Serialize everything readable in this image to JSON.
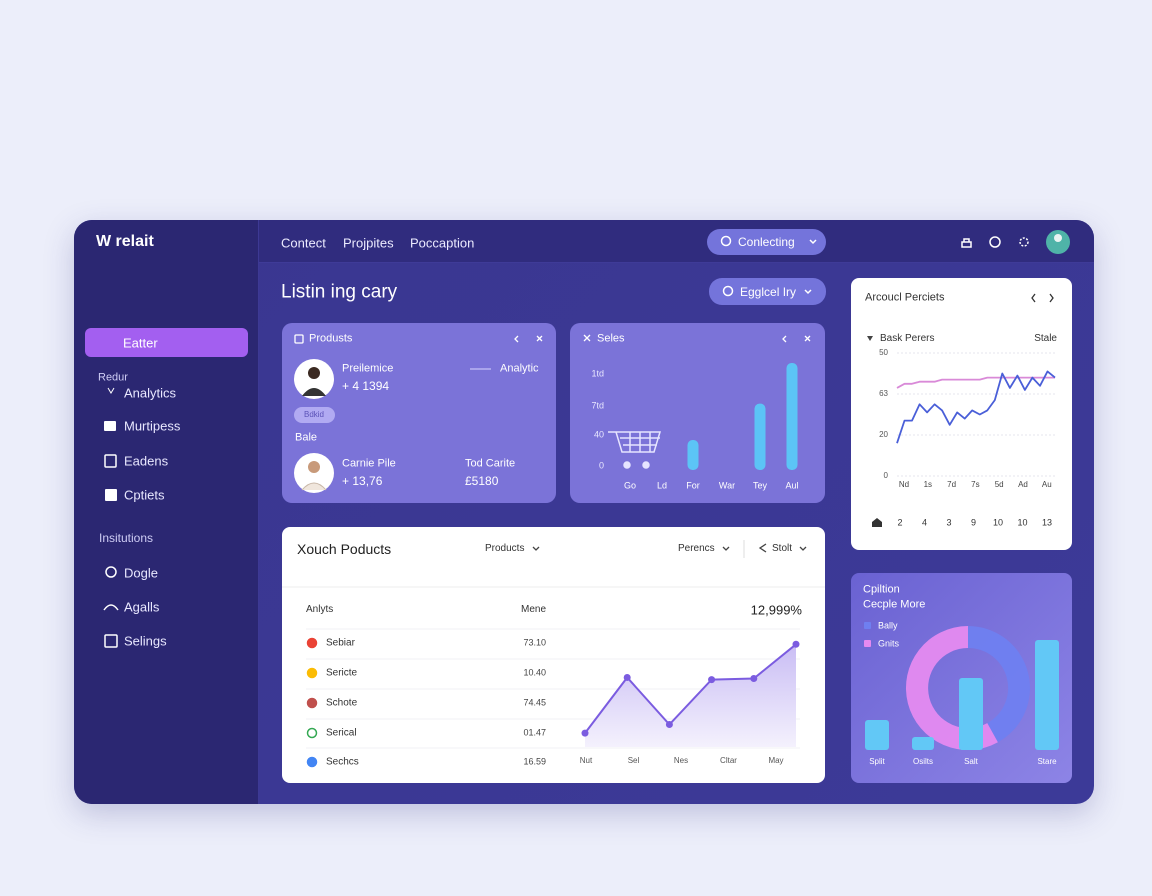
{
  "brand": "W relait",
  "nav": [
    "Contect",
    "Projpites",
    "Poccaption"
  ],
  "top_pill": "Conlecting",
  "page_title": "Listin ing cary",
  "filter_pill": "Egglcel Iry",
  "sidebar": {
    "active": "Eatter",
    "sections": [
      {
        "title": "Redur",
        "items": [
          "Analytics",
          "Murtipess",
          "Eadens",
          "Cptiets"
        ]
      },
      {
        "title": "Insitutions",
        "items": [
          "Dogle",
          "Agalls",
          "Selings"
        ]
      }
    ]
  },
  "products_card": {
    "title": "Produsts",
    "people": [
      {
        "name": "Preilemice",
        "value": "+ 4 1394"
      },
      {
        "name": "Carnie Pile",
        "value": "+ 13,76"
      }
    ],
    "tag": "Analytic",
    "badge": "Bdkid",
    "label": "Bale",
    "note_title": "Tod Carite",
    "note_value": "£5180"
  },
  "sales_chart": {
    "type": "bar",
    "title": "Seles",
    "axis_labels": [
      "1td",
      "7td",
      "40",
      "0"
    ],
    "categories": [
      "Go",
      "Ld",
      "For",
      "War",
      "Tey",
      "Aul"
    ],
    "values": [
      null,
      null,
      28,
      null,
      62,
      100
    ],
    "ylim": [
      0,
      100
    ],
    "color": "#5cc4f6"
  },
  "trend_chart": {
    "type": "line",
    "title": "Arcoucl Perciets",
    "x": [
      0,
      1,
      2,
      3,
      4,
      5,
      6,
      7,
      8,
      9,
      10,
      11,
      12,
      13,
      14,
      15,
      16,
      17,
      18,
      19,
      20,
      21
    ],
    "xlim": [
      0,
      21
    ],
    "ylim": [
      0,
      60
    ],
    "yticks": [
      0,
      20,
      {
        "value": 40,
        "label": "63"
      },
      {
        "value": 60,
        "label": "50"
      }
    ],
    "x_labels": [
      "Nd",
      "1s",
      "7d",
      "7s",
      "5d",
      "Ad",
      "Au"
    ],
    "footer": [
      "2",
      "4",
      "3",
      "9",
      "10",
      "10",
      "13"
    ],
    "series": [
      {
        "name": "Bask Perers",
        "color": "#4a5fd8",
        "values": [
          16,
          27,
          27,
          35,
          31,
          35,
          32,
          25,
          31,
          28,
          32,
          30,
          32,
          37,
          50,
          43,
          49,
          42,
          48,
          44,
          51,
          48
        ]
      },
      {
        "name": "Stale",
        "color": "#d98ad8",
        "values": [
          43,
          45,
          45,
          46,
          46,
          46,
          47,
          47,
          47,
          47,
          47,
          47,
          48,
          48,
          48,
          48,
          48,
          48,
          48,
          48,
          48,
          48
        ]
      }
    ]
  },
  "table_card": {
    "title": "Xouch Poducts",
    "filters": [
      "Products",
      "Perencs",
      "Stolt"
    ],
    "columns": [
      "Anlyts",
      "Mene"
    ],
    "total": "12,999%",
    "rows": [
      [
        "Sebiar",
        "73.10"
      ],
      [
        "Sericte",
        "10.40"
      ],
      [
        "Schote",
        "74.45"
      ],
      [
        "Serical",
        "01.47"
      ],
      [
        "Sechcs",
        "16.59"
      ]
    ],
    "chart": {
      "type": "line",
      "x": [
        0,
        1,
        2,
        3,
        4,
        5
      ],
      "xlim": [
        0,
        5
      ],
      "ylim": [
        0,
        100
      ],
      "values": [
        13,
        65,
        21,
        63,
        64,
        96
      ],
      "x_labels": [
        "Nut",
        "Sel",
        "Nes",
        "Cltar",
        "May"
      ],
      "color": "#7b5ce0"
    }
  },
  "mix_card": {
    "title": "Cpiltion",
    "subtitle": "Cecple More",
    "legend": [
      {
        "name": "Bally",
        "color": "#6f7ff0"
      },
      {
        "name": "Gnits",
        "color": "#e58af0"
      }
    ],
    "donut": {
      "type": "pie",
      "values": [
        42,
        58
      ],
      "colors": [
        "#6f7ff0",
        "#e58af0"
      ]
    },
    "bars": {
      "type": "bar",
      "categories": [
        "Split",
        "Osilts",
        "Salt",
        "Stare"
      ],
      "values": [
        30,
        13,
        72,
        110
      ],
      "ylim": [
        0,
        110
      ],
      "color": "#62c8f6"
    }
  }
}
